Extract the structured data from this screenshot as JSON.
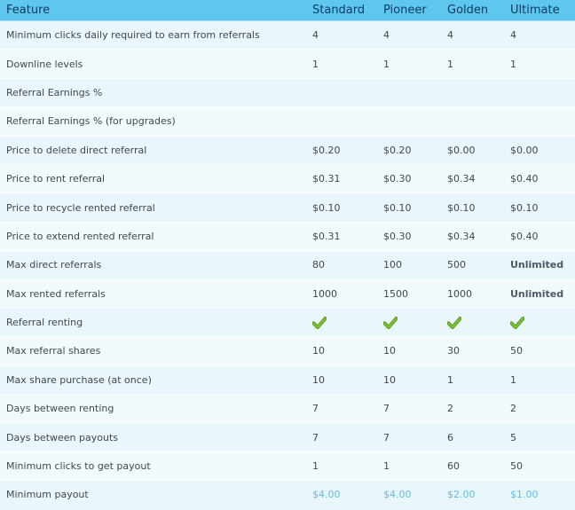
{
  "table": {
    "headers": [
      "Feature",
      "Standard",
      "Pioneer",
      "Golden",
      "Ultimate"
    ],
    "rows": [
      {
        "feature": "Minimum clicks daily required to earn from referrals",
        "values": [
          "4",
          "4",
          "4",
          "4"
        ]
      },
      {
        "feature": "Downline levels",
        "values": [
          "1",
          "1",
          "1",
          "1"
        ]
      },
      {
        "feature": "Referral Earnings %",
        "values": [
          "",
          "",
          "",
          ""
        ]
      },
      {
        "feature": "Referral Earnings % (for upgrades)",
        "values": [
          "",
          "",
          "",
          ""
        ]
      },
      {
        "feature": "Price to delete direct referral",
        "values": [
          "$0.20",
          "$0.20",
          "$0.00",
          "$0.00"
        ]
      },
      {
        "feature": "Price to rent referral",
        "values": [
          "$0.31",
          "$0.30",
          "$0.34",
          "$0.40"
        ]
      },
      {
        "feature": "Price to recycle rented referral",
        "values": [
          "$0.10",
          "$0.10",
          "$0.10",
          "$0.10"
        ]
      },
      {
        "feature": "Price to extend rented referral",
        "values": [
          "$0.31",
          "$0.30",
          "$0.34",
          "$0.40"
        ]
      },
      {
        "feature": "Max direct referrals",
        "values": [
          "80",
          "100",
          "500",
          "Unlimited"
        ]
      },
      {
        "feature": "Max rented referrals",
        "values": [
          "1000",
          "1500",
          "1000",
          "Unlimited"
        ]
      },
      {
        "feature": "Referral renting",
        "values": [
          "check-icon",
          "check-icon",
          "check-icon",
          "check-icon"
        ]
      },
      {
        "feature": "Max referral shares",
        "values": [
          "10",
          "10",
          "30",
          "50"
        ]
      },
      {
        "feature": "Max share purchase (at once)",
        "values": [
          "10",
          "10",
          "1",
          "1"
        ]
      },
      {
        "feature": "Days between renting",
        "values": [
          "7",
          "7",
          "2",
          "2"
        ]
      },
      {
        "feature": "Days between payouts",
        "values": [
          "7",
          "7",
          "6",
          "5"
        ]
      },
      {
        "feature": "Minimum clicks to get payout",
        "values": [
          "1",
          "1",
          "60",
          "50"
        ]
      },
      {
        "feature": "Minimum payout",
        "values": [
          "$4.00",
          "$4.00",
          "$2.00",
          "$1.00"
        ]
      }
    ]
  },
  "colors": {
    "header_bg": "#5fc6ee",
    "header_text": "#0e3a63",
    "row_bg": "#e9f6fc",
    "text": "#40474d",
    "payout_text": "#59c1df",
    "check_green": "#7cc034"
  }
}
